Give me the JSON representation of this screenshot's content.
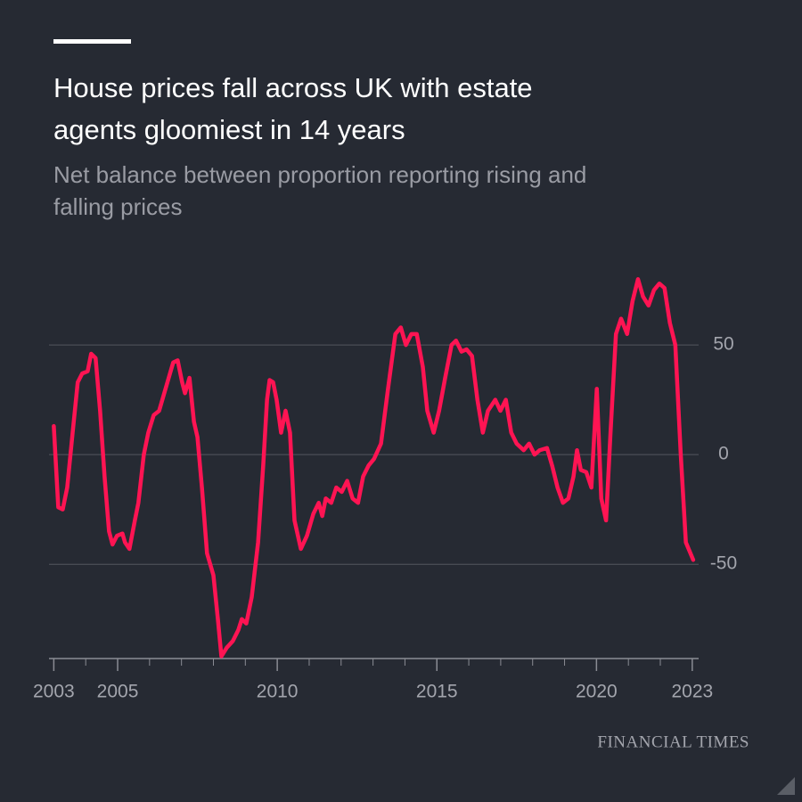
{
  "chart_data": {
    "type": "line",
    "title": [
      "House prices fall across UK with estate",
      "agents gloomiest in 14 years"
    ],
    "subtitle": [
      "Net balance between proportion reporting rising and",
      "falling prices"
    ],
    "source": "FINANCIAL TIMES",
    "x": [
      2003.0,
      2003.14,
      2003.28,
      2003.42,
      2003.59,
      2003.75,
      2003.89,
      2004.06,
      2004.17,
      2004.31,
      2004.45,
      2004.59,
      2004.73,
      2004.84,
      2004.98,
      2005.15,
      2005.23,
      2005.37,
      2005.54,
      2005.65,
      2005.82,
      2005.96,
      2006.13,
      2006.3,
      2006.46,
      2006.6,
      2006.74,
      2006.88,
      2007.02,
      2007.11,
      2007.25,
      2007.39,
      2007.5,
      2007.64,
      2007.8,
      2008.0,
      2008.14,
      2008.25,
      2008.42,
      2008.61,
      2008.78,
      2008.89,
      2009.03,
      2009.2,
      2009.4,
      2009.56,
      2009.68,
      2009.76,
      2009.87,
      2009.98,
      2010.12,
      2010.26,
      2010.4,
      2010.54,
      2010.74,
      2010.93,
      2011.13,
      2011.3,
      2011.41,
      2011.52,
      2011.69,
      2011.85,
      2012.02,
      2012.19,
      2012.36,
      2012.53,
      2012.69,
      2012.86,
      2013.03,
      2013.25,
      2013.47,
      2013.7,
      2013.87,
      2014.03,
      2014.2,
      2014.37,
      2014.56,
      2014.7,
      2014.9,
      2015.07,
      2015.26,
      2015.46,
      2015.6,
      2015.77,
      2015.93,
      2016.1,
      2016.27,
      2016.44,
      2016.6,
      2016.83,
      2016.99,
      2017.16,
      2017.33,
      2017.5,
      2017.72,
      2017.89,
      2018.06,
      2018.22,
      2018.45,
      2018.61,
      2018.78,
      2018.95,
      2019.12,
      2019.28,
      2019.39,
      2019.51,
      2019.68,
      2019.84,
      2020.01,
      2020.15,
      2020.3,
      2020.44,
      2020.61,
      2020.77,
      2020.96,
      2021.13,
      2021.3,
      2021.46,
      2021.63,
      2021.8,
      2021.97,
      2022.13,
      2022.3,
      2022.47,
      2022.64,
      2022.8,
      2023.03
    ],
    "series": [
      {
        "color": "#ff1453",
        "values": [
          13,
          -24,
          -25,
          -15,
          10,
          33,
          37,
          38,
          46,
          44,
          20,
          -10,
          -35,
          -41,
          -37,
          -36,
          -40,
          -43,
          -30,
          -22,
          0,
          10,
          18,
          20,
          28,
          35,
          42,
          43,
          33,
          28,
          35,
          15,
          8,
          -15,
          -45,
          -55,
          -75,
          -92,
          -88,
          -85,
          -80,
          -75,
          -77,
          -65,
          -40,
          -5,
          25,
          34,
          33,
          25,
          10,
          20,
          10,
          -30,
          -43,
          -37,
          -27,
          -22,
          -28,
          -20,
          -22,
          -15,
          -17,
          -12,
          -20,
          -22,
          -10,
          -5,
          -2,
          5,
          30,
          55,
          58,
          50,
          55,
          55,
          40,
          20,
          10,
          20,
          35,
          50,
          52,
          47,
          48,
          45,
          25,
          10,
          20,
          25,
          20,
          25,
          10,
          5,
          2,
          5,
          0,
          2,
          3,
          -5,
          -15,
          -22,
          -20,
          -10,
          2,
          -7,
          -8,
          -15,
          30,
          -20,
          -30,
          10,
          55,
          62,
          55,
          70,
          80,
          72,
          68,
          75,
          78,
          76,
          60,
          50,
          0,
          -40,
          -48
        ]
      }
    ],
    "xlim": [
      2002.85,
      2023.2
    ],
    "ylim": [
      -93,
      85
    ],
    "xticks": [
      2003,
      2005,
      2010,
      2015,
      2020,
      2023
    ],
    "xticks_minor": [
      2004,
      2006,
      2007,
      2008,
      2009,
      2011,
      2012,
      2013,
      2014,
      2016,
      2017,
      2018,
      2019,
      2021,
      2022
    ],
    "yticks": [
      -50,
      0,
      50
    ],
    "grid": true
  }
}
